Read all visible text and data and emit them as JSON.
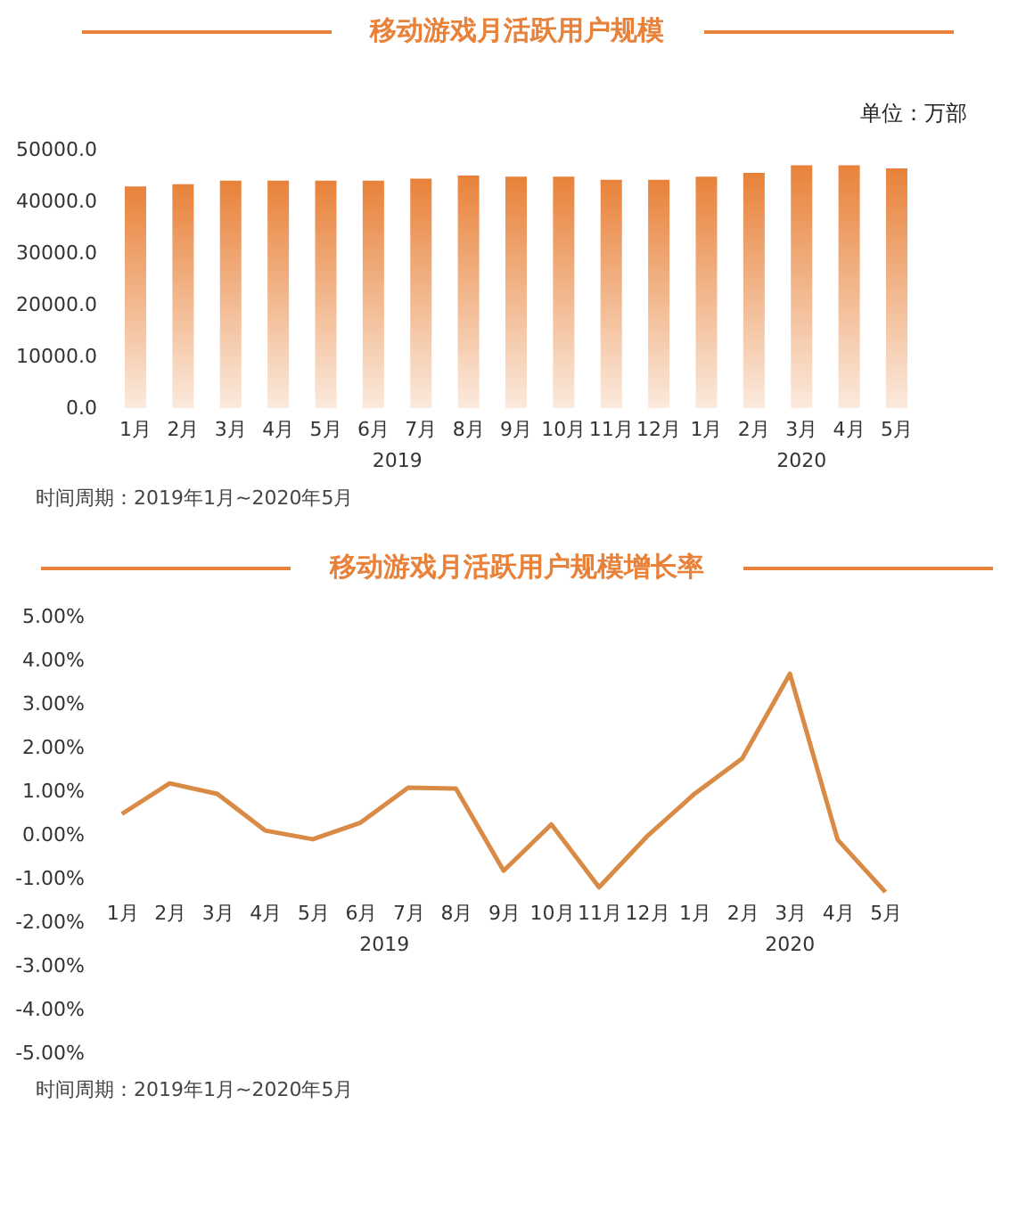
{
  "chart_data": [
    {
      "type": "bar",
      "title": "移动游戏月活跃用户规模",
      "ylabel": "单位：万部",
      "categories": [
        "1月",
        "2月",
        "3月",
        "4月",
        "5月",
        "6月",
        "7月",
        "8月",
        "9月",
        "10月",
        "11月",
        "12月",
        "1月",
        "2月",
        "3月",
        "4月",
        "5月"
      ],
      "values": [
        42900,
        43300,
        44000,
        44000,
        44000,
        44000,
        44400,
        45000,
        44800,
        44800,
        44200,
        44200,
        44800,
        45500,
        47000,
        47000,
        46400
      ],
      "color": "#e8823a",
      "ylim": [
        0,
        50000
      ],
      "yticks": [
        {
          "value": 0,
          "label": "0.0"
        },
        {
          "value": 10000,
          "label": "10000.0"
        },
        {
          "value": 20000,
          "label": "20000.0"
        },
        {
          "value": 30000,
          "label": "30000.0"
        },
        {
          "value": 40000,
          "label": "40000.0"
        },
        {
          "value": 50000,
          "label": "50000.0"
        }
      ],
      "annotations": [
        "2019",
        "2020",
        "时间周期：2019年1月~2020年5月"
      ]
    },
    {
      "type": "line",
      "title": "移动游戏月活跃用户规模增长率",
      "categories": [
        "1月",
        "2月",
        "3月",
        "4月",
        "5月",
        "6月",
        "7月",
        "8月",
        "9月",
        "10月",
        "11月",
        "12月",
        "1月",
        "2月",
        "3月",
        "4月",
        "5月"
      ],
      "values": [
        0.48,
        1.18,
        0.94,
        0.1,
        -0.1,
        0.28,
        1.08,
        1.06,
        -0.82,
        0.24,
        -1.2,
        -0.04,
        0.94,
        1.75,
        3.69,
        -0.11,
        -1.31
      ],
      "color": "#d98a45",
      "ylim": [
        -5,
        5
      ],
      "yticks": [
        {
          "value": -5,
          "label": "-5.00%"
        },
        {
          "value": -4,
          "label": "-4.00%"
        },
        {
          "value": -3,
          "label": "-3.00%"
        },
        {
          "value": -2,
          "label": "-2.00%"
        },
        {
          "value": -1,
          "label": "-1.00%"
        },
        {
          "value": 0,
          "label": "0.00%"
        },
        {
          "value": 1,
          "label": "1.00%"
        },
        {
          "value": 2,
          "label": "2.00%"
        },
        {
          "value": 3,
          "label": "3.00%"
        },
        {
          "value": 4,
          "label": "4.00%"
        },
        {
          "value": 5,
          "label": "5.00%"
        }
      ],
      "annotations": [
        "2019",
        "2020",
        "时间周期：2019年1月~2020年5月"
      ]
    }
  ]
}
